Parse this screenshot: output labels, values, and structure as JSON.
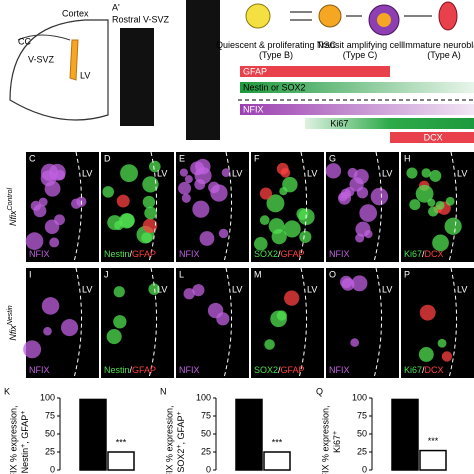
{
  "schematic": {
    "labels": [
      "CC",
      "Cortex",
      "V-SVZ",
      "LV"
    ]
  },
  "rostral": {
    "letter": "A'",
    "title": "Rostral V-SVZ"
  },
  "lineage": {
    "cells": [
      "Quiescent & proliferating NSC (Type B)",
      "Transit amplifying cell (Type C)",
      "Immature neuroblast (Type A)"
    ],
    "markers": [
      {
        "text": "GFAP",
        "color": "#e8414b"
      },
      {
        "text": "Nestin or SOX2",
        "color": "#2eaa4a"
      },
      {
        "text": "NFIX",
        "color": "#9b3fb0"
      },
      {
        "text": "Ki67",
        "color": "#2eaa4a"
      },
      {
        "text": "DCX",
        "color": "#e8414b"
      }
    ]
  },
  "lv_label": "LV",
  "rows": [
    {
      "gene": "Nfix",
      "sup": "Control",
      "panels": [
        {
          "letter": "C",
          "stains": [
            {
              "text": "NFIX",
              "color": "#c060e0"
            }
          ]
        },
        {
          "letter": "D",
          "stains": [
            {
              "text": "Nestin",
              "color": "#50e050"
            },
            {
              "text": "/",
              "color": "#ffffff"
            },
            {
              "text": "GFAP",
              "color": "#ff4040"
            }
          ]
        },
        {
          "letter": "E",
          "stains": [
            {
              "text": "NFIX",
              "color": "#c060e0"
            }
          ]
        },
        {
          "letter": "F",
          "stains": [
            {
              "text": "SOX2",
              "color": "#50e050"
            },
            {
              "text": "/",
              "color": "#ffffff"
            },
            {
              "text": "GFAP",
              "color": "#ff4040"
            }
          ]
        },
        {
          "letter": "G",
          "stains": [
            {
              "text": "NFIX",
              "color": "#c060e0"
            }
          ]
        },
        {
          "letter": "H",
          "stains": [
            {
              "text": "Ki67",
              "color": "#50e050"
            },
            {
              "text": "/",
              "color": "#ffffff"
            },
            {
              "text": "DCX",
              "color": "#ff4040"
            }
          ]
        }
      ]
    },
    {
      "gene": "Nfix",
      "sup": "Nestin",
      "panels": [
        {
          "letter": "I",
          "stains": [
            {
              "text": "NFIX",
              "color": "#c060e0"
            }
          ]
        },
        {
          "letter": "J",
          "stains": [
            {
              "text": "Nestin",
              "color": "#50e050"
            },
            {
              "text": "/",
              "color": "#ffffff"
            },
            {
              "text": "GFAP",
              "color": "#ff4040"
            }
          ]
        },
        {
          "letter": "L",
          "stains": [
            {
              "text": "NFIX",
              "color": "#c060e0"
            }
          ]
        },
        {
          "letter": "M",
          "stains": [
            {
              "text": "SOX2",
              "color": "#50e050"
            },
            {
              "text": "/",
              "color": "#ffffff"
            },
            {
              "text": "GFAP",
              "color": "#ff4040"
            }
          ]
        },
        {
          "letter": "O",
          "stains": [
            {
              "text": "NFIX",
              "color": "#c060e0"
            }
          ]
        },
        {
          "letter": "P",
          "stains": [
            {
              "text": "Ki67",
              "color": "#50e050"
            },
            {
              "text": "/",
              "color": "#ffffff"
            },
            {
              "text": "DCX",
              "color": "#ff4040"
            }
          ]
        }
      ]
    }
  ],
  "chart_data": [
    {
      "type": "bar",
      "letter": "K",
      "ylabel": "FIX % expression,",
      "ylabel2": [
        {
          "text": "Nestin",
          "sup": "+"
        },
        {
          "text": ", GFAP",
          "sup": "+"
        }
      ],
      "values": [
        98,
        25
      ],
      "colors": [
        "#000000",
        "#ffffff"
      ],
      "annotation": "***",
      "ylim": [
        0,
        100
      ],
      "yticks": [
        0,
        25,
        50,
        75,
        100
      ]
    },
    {
      "type": "bar",
      "letter": "N",
      "ylabel": "FIX % expression,",
      "ylabel2": [
        {
          "text": "SOX2",
          "sup": "+"
        },
        {
          "text": ", GFAP",
          "sup": "+"
        }
      ],
      "values": [
        98,
        25
      ],
      "colors": [
        "#000000",
        "#ffffff"
      ],
      "annotation": "***",
      "ylim": [
        0,
        100
      ],
      "yticks": [
        0,
        25,
        50,
        75,
        100
      ]
    },
    {
      "type": "bar",
      "letter": "Q",
      "ylabel": "FIX % expression,",
      "ylabel2": [
        {
          "text": "Ki67",
          "sup": "+"
        }
      ],
      "values": [
        98,
        27
      ],
      "colors": [
        "#000000",
        "#ffffff"
      ],
      "annotation": "***",
      "ylim": [
        0,
        100
      ],
      "yticks": [
        0,
        25,
        50,
        75,
        100
      ]
    }
  ]
}
